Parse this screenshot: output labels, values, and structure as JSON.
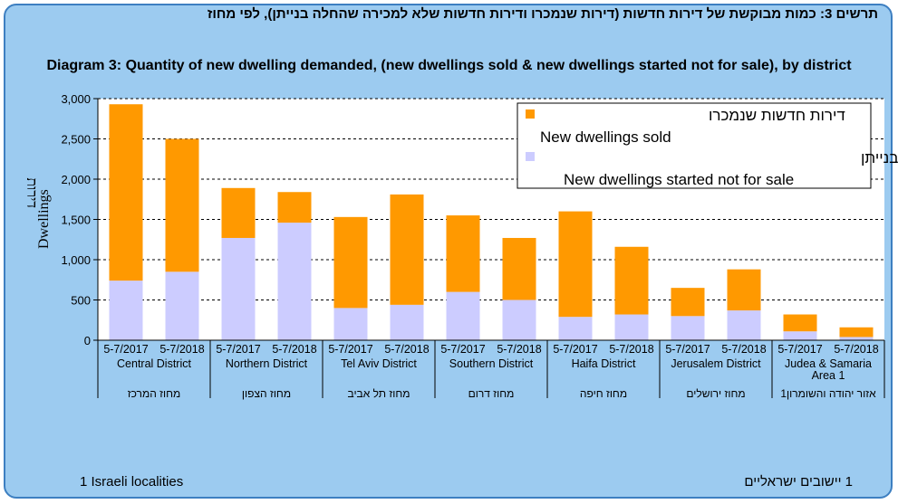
{
  "chart_data": {
    "type": "bar",
    "stacked": true,
    "title_he": "תרשים 3: כמות מבוקשת של דירות חדשות (דירות שנמכרו ודירות חדשות שלא למכירה שהחלה בנייתן), לפי  מחוז",
    "title_en": "Diagram 3:  Quantity of new dwelling demanded, (new dwellings sold & new dwellings started not for sale), by district",
    "ylabel_en": "Dwellings",
    "ylabel_he": "דירות",
    "ylim": [
      0,
      3000
    ],
    "yticks": [
      "0",
      "500",
      "1,000",
      "1,500",
      "2,000",
      "2,500",
      "3,000"
    ],
    "categories": [
      "5-7/2017",
      "5-7/2018",
      "5-7/2017",
      "5-7/2018",
      "5-7/2017",
      "5-7/2018",
      "5-7/2017",
      "5-7/2018",
      "5-7/2017",
      "5-7/2018",
      "5-7/2017",
      "5-7/2018",
      "5-7/2017",
      "5-7/2018"
    ],
    "groups": [
      {
        "en": "Central District",
        "he": "מחוז המרכז"
      },
      {
        "en": "Northern District",
        "he": "מחוז הצפון"
      },
      {
        "en": "Tel Aviv District",
        "he": "מחוז תל אביב"
      },
      {
        "en": "Southern District",
        "he": "מחוז דרום"
      },
      {
        "en": "Haifa District",
        "he": "מחוז חיפה"
      },
      {
        "en": "Jerusalem District",
        "he": "מחוז ירושלים"
      },
      {
        "en": "Judea & Samaria Area 1",
        "he": "אזור יהודה והשומרון1"
      }
    ],
    "series": [
      {
        "name_he": "דירות חדשות שלא למכירה שהחלה בנייתן",
        "name_en": "New dwellings started not for sale",
        "color": "#ccccff",
        "values": [
          740,
          850,
          1270,
          1460,
          400,
          440,
          600,
          500,
          290,
          320,
          300,
          370,
          110,
          40
        ]
      },
      {
        "name_he": "דירות חדשות שנמכרו",
        "name_en": "New dwellings sold",
        "color": "#ff9900",
        "values": [
          2190,
          1650,
          620,
          380,
          1130,
          1370,
          950,
          770,
          1310,
          840,
          350,
          510,
          210,
          120
        ]
      }
    ]
  },
  "footnote_en": "1 Israeli localities",
  "footnote_he": "1 יישובים ישראליים"
}
